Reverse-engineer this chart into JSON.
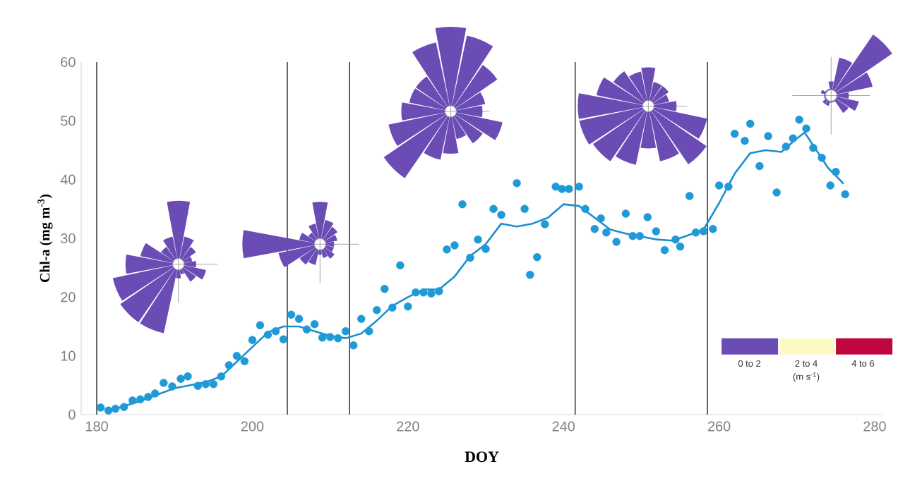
{
  "chart_data": {
    "type": "scatter",
    "xlabel": "DOY",
    "ylabel": "Chl-a (mg m$^{-3}$)",
    "xlim": [
      178,
      281
    ],
    "ylim": [
      0,
      60
    ],
    "xticks": [
      180,
      200,
      220,
      240,
      260,
      280
    ],
    "yticks": [
      0,
      10,
      20,
      30,
      40,
      50,
      60
    ],
    "grid": false,
    "series": [
      {
        "marker": "circle",
        "color": "#1f9ad6",
        "x": [
          180.5,
          181.5,
          182.4,
          183.5,
          184.6,
          185.6,
          186.6,
          187.5,
          188.6,
          189.7,
          190.8,
          191.7,
          193,
          194,
          195,
          196,
          197,
          198,
          199,
          200,
          201,
          202,
          203,
          204,
          205,
          206,
          207,
          208,
          209,
          210,
          211,
          212,
          213,
          214,
          215,
          216,
          217,
          218,
          219,
          220,
          221,
          222,
          223,
          224,
          225,
          226,
          227,
          228,
          229,
          230,
          231,
          232,
          234,
          235,
          235.7,
          236.6,
          237.6,
          239,
          239.8,
          240.7,
          242,
          242.8,
          244,
          244.8,
          245.5,
          246.8,
          248,
          248.9,
          249.8,
          250.8,
          251.9,
          253,
          254.4,
          255,
          256.2,
          257,
          258,
          259.2,
          260,
          261.2,
          262,
          263.3,
          264,
          265.2,
          266.3,
          267.4,
          268.6,
          269.5,
          270.3,
          271.2,
          272.1,
          273.2,
          274.3,
          275,
          276.2
        ],
        "values": [
          1.2,
          0.7,
          1.0,
          1.3,
          2.4,
          2.6,
          3.0,
          3.6,
          5.4,
          4.8,
          6.1,
          6.5,
          4.9,
          5.2,
          5.2,
          6.5,
          8.4,
          10,
          9.1,
          12.7,
          15.2,
          13.6,
          14.2,
          12.8,
          17,
          16.3,
          14.5,
          15.4,
          13.1,
          13.2,
          13,
          14.2,
          11.8,
          16.3,
          14.2,
          17.8,
          21.4,
          18.2,
          25.4,
          18.4,
          20.8,
          20.8,
          20.6,
          21,
          28.1,
          28.8,
          35.8,
          26.7,
          29.8,
          28.2,
          35,
          34,
          39.4,
          35,
          23.8,
          26.8,
          32.4,
          38.8,
          38.4,
          38.4,
          38.8,
          35,
          31.6,
          33.4,
          31,
          29.4,
          34.2,
          30.4,
          30.4,
          33.6,
          31.2,
          28,
          29.8,
          28.6,
          37.2,
          31,
          31.2,
          31.6,
          39,
          38.8,
          47.8,
          46.6,
          49.5,
          42.3,
          47.4,
          37.8,
          45.6,
          47,
          50.2,
          48.7,
          45.4,
          43.7,
          39,
          41.3,
          37.5
        ]
      },
      {
        "type": "line",
        "marker": "none",
        "line_style": "solid",
        "color": "#1a8fd0",
        "x": [
          182,
          186,
          190,
          194,
          196,
          198,
          200,
          202,
          204,
          206,
          208,
          210,
          212,
          214,
          216,
          218,
          220,
          222,
          224,
          226,
          228,
          230,
          232,
          234,
          236,
          238,
          240,
          242,
          244,
          246,
          248,
          250,
          252,
          254,
          256,
          258,
          260,
          262,
          264,
          266,
          268,
          270,
          271,
          272,
          274,
          276
        ],
        "values": [
          0.8,
          2.5,
          4.5,
          5.5,
          6.5,
          9,
          11.5,
          14,
          15,
          15,
          14.2,
          13.4,
          13,
          13.8,
          16,
          18.5,
          20,
          21.3,
          21.3,
          23.5,
          27,
          29,
          32.5,
          32,
          32.5,
          33.5,
          35.8,
          35.5,
          33.5,
          31.5,
          30.8,
          30.3,
          29.8,
          29.6,
          30.5,
          31.5,
          36,
          41,
          44.5,
          45,
          44.7,
          47,
          48,
          46,
          42,
          39.3
        ]
      }
    ],
    "ref_lines": [
      {
        "axis": "x",
        "value": 180,
        "color": "#404040"
      },
      {
        "axis": "x",
        "value": 204.5,
        "color": "#404040"
      },
      {
        "axis": "x",
        "value": 212.5,
        "color": "#404040"
      },
      {
        "axis": "x",
        "value": 241.5,
        "color": "#404040"
      },
      {
        "axis": "x",
        "value": 258.5,
        "color": "#404040"
      }
    ],
    "annotations": [
      "0 to 2",
      "2 to 4",
      "4 to 6",
      "(m s$^{-1}$)"
    ]
  }
}
